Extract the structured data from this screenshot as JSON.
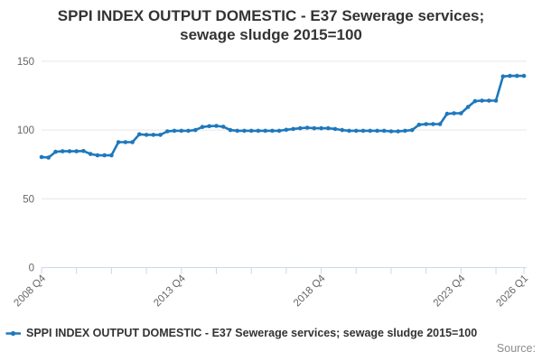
{
  "title": {
    "line1": "SPPI INDEX OUTPUT DOMESTIC - E37 Sewerage services;",
    "line2": "sewage sludge 2015=100"
  },
  "legend": {
    "label": "SPPI INDEX OUTPUT DOMESTIC - E37 Sewerage services; sewage sludge 2015=100"
  },
  "source": {
    "label": "Source:"
  },
  "colors": {
    "series": "#1e78bc",
    "grid": "#e6e6e6",
    "axis": "#ccd6eb",
    "tick_text": "#666666",
    "title_text": "#333333",
    "source_text": "#8c8c8c"
  },
  "chart_data": {
    "type": "line",
    "title": "SPPI INDEX OUTPUT DOMESTIC - E37 Sewerage services; sewage sludge 2015=100",
    "xlabel": "",
    "ylabel": "",
    "ylim": [
      0,
      160
    ],
    "y_ticks": [
      0,
      50,
      100,
      150
    ],
    "x_tick_every": 5,
    "x_labeled_ticks": [
      "2008 Q4",
      "2013 Q4",
      "2018 Q4",
      "2023 Q4",
      "2026 Q1"
    ],
    "grid": "horizontal",
    "legend_position": "bottom",
    "marker": "dot",
    "categories": [
      "2008 Q4",
      "2009 Q1",
      "2009 Q2",
      "2009 Q3",
      "2009 Q4",
      "2010 Q1",
      "2010 Q2",
      "2010 Q3",
      "2010 Q4",
      "2011 Q1",
      "2011 Q2",
      "2011 Q3",
      "2011 Q4",
      "2012 Q1",
      "2012 Q2",
      "2012 Q3",
      "2012 Q4",
      "2013 Q1",
      "2013 Q2",
      "2013 Q3",
      "2013 Q4",
      "2014 Q1",
      "2014 Q2",
      "2014 Q3",
      "2014 Q4",
      "2015 Q1",
      "2015 Q2",
      "2015 Q3",
      "2015 Q4",
      "2016 Q1",
      "2016 Q2",
      "2016 Q3",
      "2016 Q4",
      "2017 Q1",
      "2017 Q2",
      "2017 Q3",
      "2017 Q4",
      "2018 Q1",
      "2018 Q2",
      "2018 Q3",
      "2018 Q4",
      "2019 Q1",
      "2019 Q2",
      "2019 Q3",
      "2019 Q4",
      "2020 Q1",
      "2020 Q2",
      "2020 Q3",
      "2020 Q4",
      "2021 Q1",
      "2021 Q2",
      "2021 Q3",
      "2021 Q4",
      "2022 Q1",
      "2022 Q2",
      "2022 Q3",
      "2022 Q4",
      "2023 Q1",
      "2023 Q2",
      "2023 Q3",
      "2023 Q4",
      "2024 Q1",
      "2024 Q2",
      "2024 Q3",
      "2024 Q4",
      "2025 Q1",
      "2025 Q2",
      "2025 Q3",
      "2025 Q4",
      "2026 Q1"
    ],
    "values": [
      80.4,
      80.0,
      84.2,
      84.6,
      84.6,
      84.6,
      84.8,
      82.6,
      81.6,
      81.6,
      81.6,
      91.2,
      91.2,
      91.2,
      96.9,
      96.5,
      96.5,
      96.5,
      99.1,
      99.5,
      99.5,
      99.5,
      100.0,
      102.2,
      102.8,
      103.0,
      102.4,
      100.0,
      99.5,
      99.5,
      99.5,
      99.5,
      99.5,
      99.5,
      99.5,
      100.2,
      100.8,
      101.3,
      101.7,
      101.3,
      101.3,
      101.3,
      100.8,
      100.0,
      99.5,
      99.5,
      99.5,
      99.5,
      99.5,
      99.5,
      99.1,
      99.1,
      99.5,
      100.0,
      103.9,
      104.3,
      104.3,
      104.3,
      111.8,
      112.2,
      112.2,
      116.8,
      121.0,
      121.4,
      121.4,
      121.4,
      139.0,
      139.4,
      139.4,
      139.4
    ]
  }
}
